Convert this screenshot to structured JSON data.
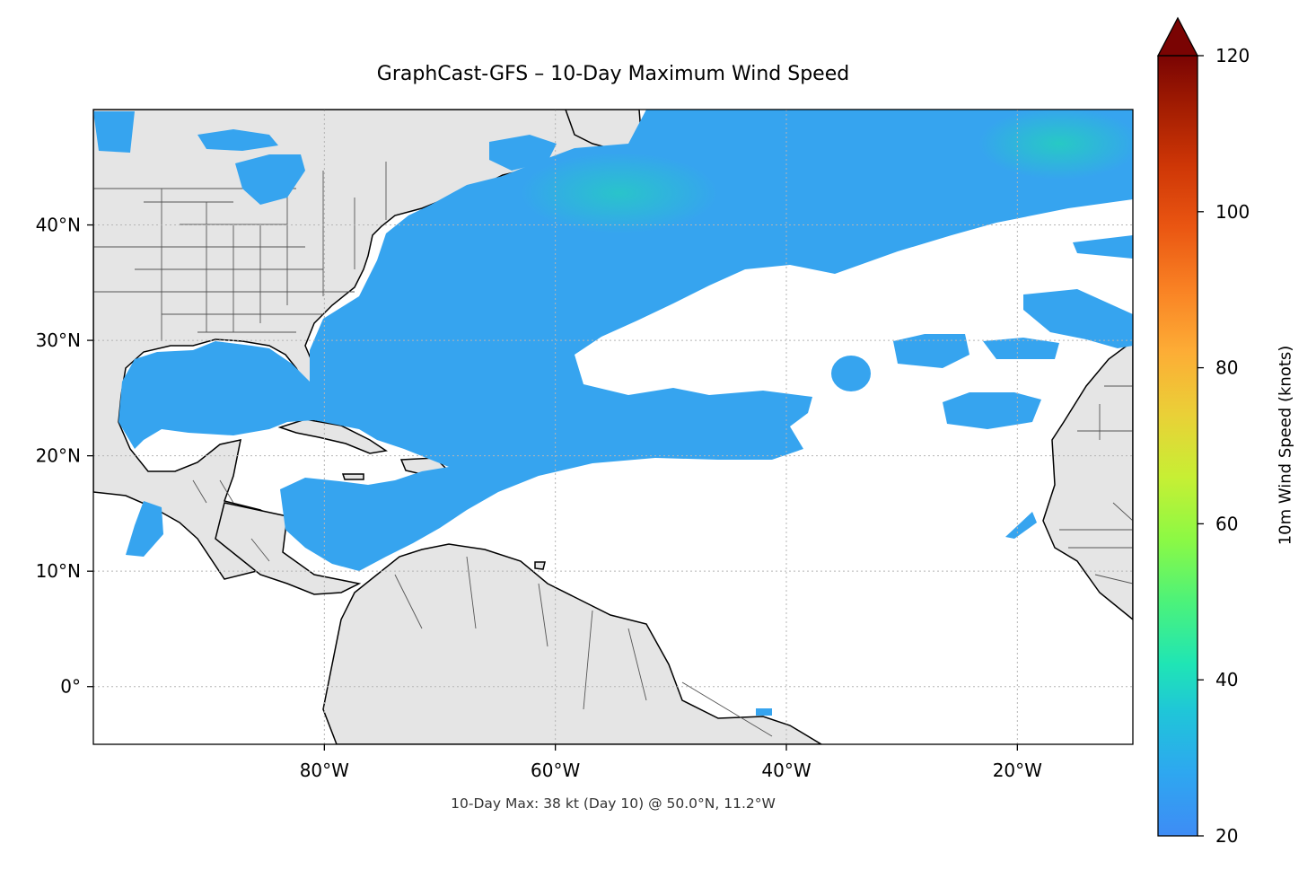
{
  "title": "GraphCast-GFS – 10-Day Maximum Wind Speed",
  "caption": "10-Day Max: 38 kt (Day 10) @ 50.0°N, 11.2°W",
  "map": {
    "projection": "PlateCarree",
    "lon_range": [
      -100,
      -10
    ],
    "lat_range": [
      -5,
      50
    ],
    "lon_ticks": [
      {
        "value": -80,
        "label": "80°W"
      },
      {
        "value": -60,
        "label": "60°W"
      },
      {
        "value": -40,
        "label": "40°W"
      },
      {
        "value": -20,
        "label": "20°W"
      }
    ],
    "lat_ticks": [
      {
        "value": 40,
        "label": "40°N"
      },
      {
        "value": 30,
        "label": "30°N"
      },
      {
        "value": 20,
        "label": "20°N"
      },
      {
        "value": 10,
        "label": "10°N"
      },
      {
        "value": 0,
        "label": "0°"
      }
    ],
    "gridlines": "dotted",
    "land_color": "#e5e5e5",
    "ocean_color": "#ffffff"
  },
  "colorbar": {
    "label": "10m Wind Speed (knots)",
    "min": 20,
    "max": 120,
    "extend": "max",
    "ticks": [
      20,
      40,
      60,
      80,
      100,
      120
    ],
    "colormap": "turbo"
  },
  "max_point": {
    "value_kt": 38,
    "day": 10,
    "lat": 50.0,
    "lon": -11.2
  }
}
